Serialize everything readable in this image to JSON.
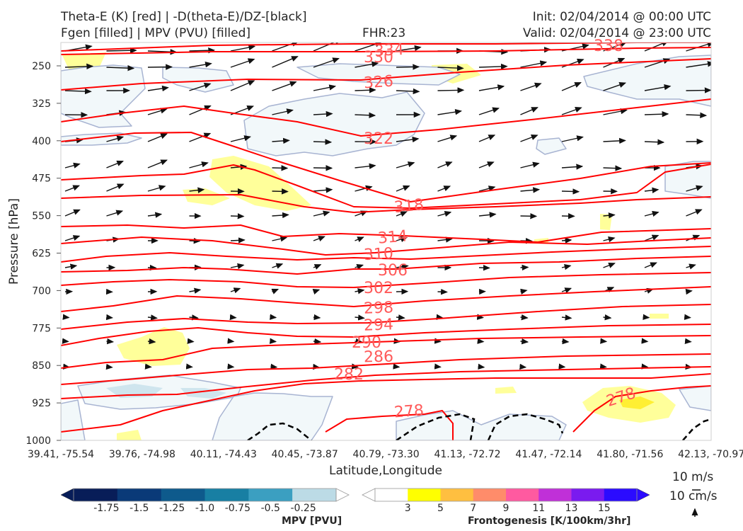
{
  "header": {
    "title_left_1": "Theta-E (K) [red] | -D(theta-E)/DZ-[black]",
    "title_left_2": "Fgen [filled] | MPV (PVU) [filled]",
    "title_center": "FHR:23",
    "title_right_1": "Init: 02/04/2014 @ 00:00 UTC",
    "title_right_2": "Valid: 02/04/2014 @ 23:00 UTC"
  },
  "chart_data": {
    "type": "cross-section",
    "xlabel": "Latitude,Longitude",
    "ylabel": "Pressure [hPa]",
    "ylim": [
      1000,
      200
    ],
    "y_ticks": [
      "250",
      "325",
      "400",
      "475",
      "550",
      "625",
      "700",
      "775",
      "850",
      "925",
      "1000"
    ],
    "x_ticks": [
      "39.41, -75.54",
      "39.76, -74.98",
      "40.11, -74.43",
      "40.45, -73.87",
      "40.79, -73.30",
      "41.13, -72.72",
      "41.47, -72.14",
      "41.80, -71.56",
      "42.13, -70.97"
    ],
    "theta_e_labels": [
      "334",
      "330",
      "326",
      "322",
      "318",
      "314",
      "310",
      "306",
      "302",
      "298",
      "294",
      "290",
      "286",
      "282",
      "278",
      "278"
    ],
    "top_partial_label": "338",
    "colors": {
      "theta_e": "#ff0000",
      "theta_e_label": "#ff5a5a",
      "dthetae_dz": "#000000",
      "mpv_outline": "#a8b4d2",
      "fgen_low": "#ffff9a",
      "wind": "#111111"
    },
    "vector_key": [
      "10 m/s",
      "10 cm/s"
    ],
    "mpv_colorbar": {
      "title": "MPV [PVU]",
      "labels": [
        "-1.75",
        "-1.5",
        "-1.25",
        "-1.0",
        "-0.75",
        "-0.5",
        "-0.25"
      ],
      "colors": [
        "#081d58",
        "#0a3a78",
        "#0e5a8c",
        "#187fa3",
        "#3b9fc1",
        "#7dbcd6",
        "#bcdbe6",
        "#ffffff"
      ]
    },
    "fgen_colorbar": {
      "title": "Frontogenesis [K/100km/3hr]",
      "labels": [
        "3",
        "5",
        "7",
        "9",
        "11",
        "13",
        "15"
      ],
      "colors": [
        "#ffffff",
        "#ffff00",
        "#ffbf40",
        "#ff8c6a",
        "#ff5aa0",
        "#c030d8",
        "#7a1bef",
        "#2b0bff"
      ]
    }
  }
}
